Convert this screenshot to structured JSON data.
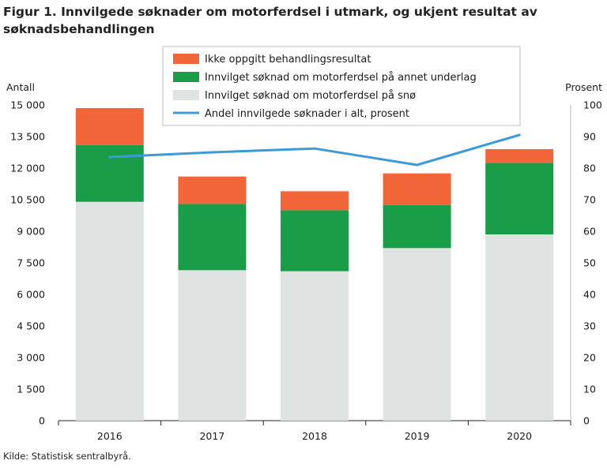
{
  "title": "Figur 1. Innvilgede søknader om motorferdsel i utmark, og ukjent resultat av søknadsbehandlingen",
  "source": "Kilde: Statistisk sentralbyrå.",
  "chart_data": {
    "type": "bar",
    "stacked": true,
    "categories": [
      "2016",
      "2017",
      "2018",
      "2019",
      "2020"
    ],
    "series": [
      {
        "name": "Innvilget søknad om motorferdsel på snø",
        "values": [
          10400,
          7150,
          7100,
          8200,
          8850
        ],
        "color": "#dfe4e3",
        "axis": "left"
      },
      {
        "name": "Innvilget søknad om motorferdsel på annet underlag",
        "values": [
          2700,
          3150,
          2900,
          2050,
          3400
        ],
        "color": "#1a9d49",
        "axis": "left"
      },
      {
        "name": "Ikke oppgitt behandlingsresultat",
        "values": [
          1750,
          1300,
          900,
          1500,
          650
        ],
        "color": "#f26539",
        "axis": "left"
      },
      {
        "name": "Andel innvilgede søknader i alt, prosent",
        "type": "line",
        "values": [
          83.5,
          85,
          86.2,
          81,
          90.5
        ],
        "color": "#3b9ad9",
        "axis": "right"
      }
    ],
    "legend_order": [
      2,
      1,
      0,
      3
    ],
    "ylabel": "Antall",
    "ylabel_right": "Prosent",
    "ylim": [
      0,
      15000
    ],
    "ylim_right": [
      0,
      100
    ],
    "yticks": [
      0,
      1500,
      3000,
      4500,
      6000,
      7500,
      9000,
      10500,
      12000,
      13500,
      15000
    ],
    "yticks_labels": [
      "0",
      "1 500",
      "3 000",
      "4 500",
      "6 000",
      "7 500",
      "9 000",
      "10 500",
      "12 000",
      "13 500",
      "15 000"
    ],
    "yticks_right": [
      0,
      10,
      20,
      30,
      40,
      50,
      60,
      70,
      80,
      90,
      100
    ],
    "legend_position": "top-center",
    "grid": false
  }
}
